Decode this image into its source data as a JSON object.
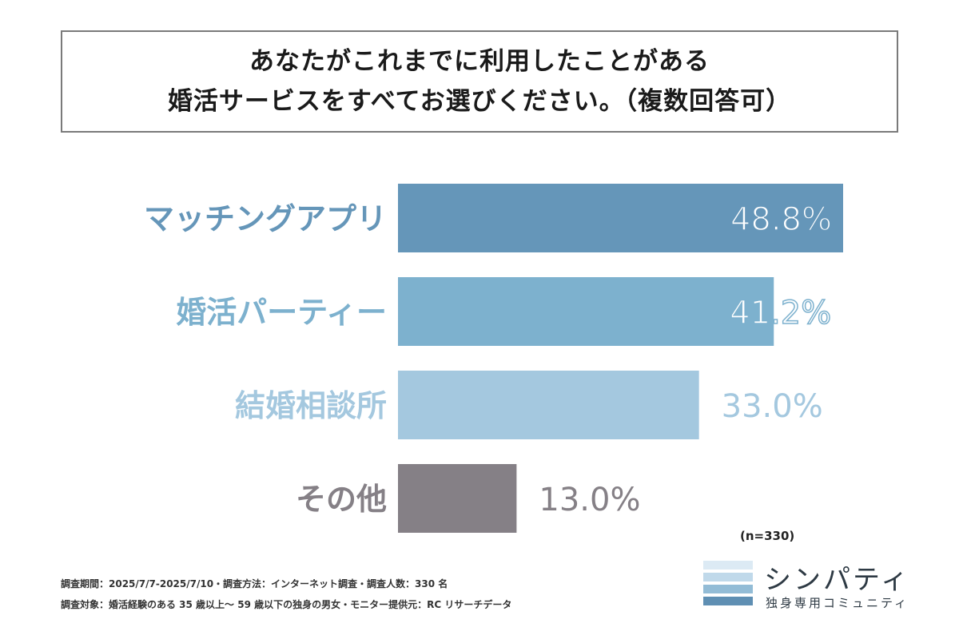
{
  "title": {
    "line1": "あなたがこれまでに利用したことがある",
    "line2": "婚活サービスをすべてお選びください。（複数回答可）"
  },
  "chart_data": {
    "type": "bar",
    "orientation": "horizontal",
    "categories": [
      "マッチングアプリ",
      "婚活パーティー",
      "結婚相談所",
      "その他"
    ],
    "values": [
      48.8,
      41.2,
      33.0,
      13.0
    ],
    "value_labels": [
      "48.8%",
      "41.2%",
      "33.0%",
      "13.0%"
    ],
    "colors": [
      "#6596b9",
      "#7db1ce",
      "#a4c8df",
      "#858086"
    ],
    "label_colors": [
      "#6596b9",
      "#7db1ce",
      "#a4c8df",
      "#858086"
    ],
    "value_label_colors": [
      "#ffffff",
      "#ffffff",
      "#a4c8df",
      "#858086"
    ],
    "xlim": [
      0,
      48.8
    ],
    "grid": false,
    "legend": "none"
  },
  "sample_size": "(n=330)",
  "footnotes": {
    "line1": "調査期間：2025/7/7-2025/7/10・調査方法：インターネット調査・調査人数：330 名",
    "line2": "調査対象：婚活経験のある 35 歳以上～ 59 歳以下の独身の男女・モニター提供元：RC リサーチデータ"
  },
  "logo": {
    "name": "シンパティ",
    "subtitle": "独身専用コミュニティ",
    "stripe_colors": [
      "#dceaf4",
      "#c0d9ea",
      "#93bcd6",
      "#5f8fb3"
    ]
  }
}
